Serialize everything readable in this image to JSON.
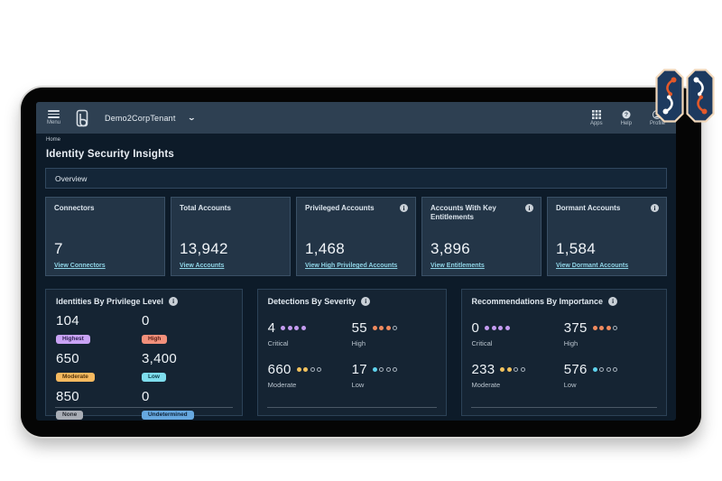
{
  "navbar": {
    "menu_label": "Menu",
    "tenant": "Demo2CorpTenant",
    "apps_label": "Apps",
    "help_label": "Help",
    "profile_label": "Profile"
  },
  "breadcrumb": {
    "home": "Home"
  },
  "header": {
    "title": "Identity Security Insights",
    "tab": "Overview"
  },
  "summary_cards": [
    {
      "title": "Connectors",
      "value": "7",
      "link": "View Connectors"
    },
    {
      "title": "Total Accounts",
      "value": "13,942",
      "link": "View Accounts"
    },
    {
      "title": "Privileged Accounts",
      "value": "1,468",
      "link": "View High Privileged Accounts"
    },
    {
      "title": "Accounts With Key Entitlements",
      "value": "3,896",
      "link": "View Entitlements"
    },
    {
      "title": "Dormant Accounts",
      "value": "1,584",
      "link": "View Dormant Accounts"
    }
  ],
  "privilege_card": {
    "title": "Identities By Privilege Level",
    "items": [
      {
        "value": "104",
        "badge": "Highest"
      },
      {
        "value": "0",
        "badge": "High"
      },
      {
        "value": "650",
        "badge": "Moderate"
      },
      {
        "value": "3,400",
        "badge": "Low"
      },
      {
        "value": "850",
        "badge": "None"
      },
      {
        "value": "0",
        "badge": "Undetermined"
      }
    ]
  },
  "detections_card": {
    "title": "Detections By Severity",
    "items": [
      {
        "value": "4",
        "label": "Critical",
        "dots_filled": 4,
        "dot_color": "#c49bf0"
      },
      {
        "value": "55",
        "label": "High",
        "dots_filled": 3,
        "dot_color": "#f08a5e"
      },
      {
        "value": "660",
        "label": "Moderate",
        "dots_filled": 2,
        "dot_color": "#f2c25e"
      },
      {
        "value": "17",
        "label": "Low",
        "dots_filled": 1,
        "dot_color": "#5fd3ee"
      }
    ]
  },
  "recommendations_card": {
    "title": "Recommendations By Importance",
    "items": [
      {
        "value": "0",
        "label": "Critical",
        "dots_filled": 4,
        "dot_color": "#c49bf0"
      },
      {
        "value": "375",
        "label": "High",
        "dots_filled": 3,
        "dot_color": "#f08a5e"
      },
      {
        "value": "233",
        "label": "Moderate",
        "dots_filled": 2,
        "dot_color": "#f2c25e"
      },
      {
        "value": "576",
        "label": "Low",
        "dots_filled": 1,
        "dot_color": "#5fd3ee"
      }
    ]
  },
  "icons": {
    "menu": "hamburger-icon",
    "brand": "brand-logo-icon",
    "tenant_chevron": "chevron-down-icon",
    "apps": "apps-grid-icon",
    "help": "help-question-icon",
    "profile": "profile-person-icon",
    "info": "info-icon",
    "overlay": "circuit-brain-logo"
  },
  "colors": {
    "navbar_bg": "#2e4052",
    "screen_bg": "#0d1b29",
    "summary_card_bg": "#233547",
    "bottom_card_bg": "#152433",
    "link": "#8fd4e6",
    "badge_highest": "#c9a3f5",
    "badge_high": "#f2907b",
    "badge_moderate": "#f5b95f",
    "badge_low": "#7edded",
    "badge_none": "#a9aeb6",
    "badge_undetermined": "#66a8e0",
    "dot_critical": "#c49bf0",
    "dot_high": "#f08a5e",
    "dot_moderate": "#f2c25e",
    "dot_low": "#5fd3ee",
    "logo_navy": "#1d3a5f",
    "logo_orange": "#e3592a",
    "logo_outline": "#f2d8ba"
  }
}
